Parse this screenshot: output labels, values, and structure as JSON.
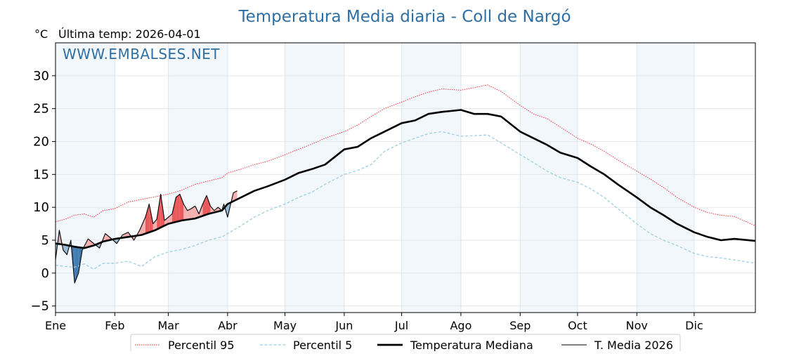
{
  "chart_data": {
    "type": "line",
    "title": "Temperatura Media diaria - Coll de Nargó",
    "unit": "°C",
    "subtitle": "Última temp: 2026-04-01",
    "watermark": "WWW.EMBALSES.NET",
    "ylim": [
      -6,
      35
    ],
    "yticks": [
      -5,
      0,
      5,
      10,
      15,
      20,
      25,
      30
    ],
    "ytick_labels": [
      "−5",
      "0",
      "5",
      "10",
      "15",
      "20",
      "25",
      "30"
    ],
    "xlim": [
      0,
      366
    ],
    "months": [
      {
        "label": "Ene",
        "day": 0
      },
      {
        "label": "Feb",
        "day": 31
      },
      {
        "label": "Mar",
        "day": 59
      },
      {
        "label": "Abr",
        "day": 90
      },
      {
        "label": "May",
        "day": 120
      },
      {
        "label": "Jun",
        "day": 151
      },
      {
        "label": "Jul",
        "day": 181
      },
      {
        "label": "Ago",
        "day": 212
      },
      {
        "label": "Sep",
        "day": 243
      },
      {
        "label": "Oct",
        "day": 273
      },
      {
        "label": "Nov",
        "day": 304
      },
      {
        "label": "Dic",
        "day": 334
      }
    ],
    "grid": true,
    "legend_position": "bottom",
    "series": [
      {
        "name": "Percentil 95",
        "color": "#e8242a",
        "style": "dotted",
        "points": [
          [
            0,
            7.8
          ],
          [
            5,
            8.2
          ],
          [
            10,
            8.8
          ],
          [
            15,
            9.0
          ],
          [
            20,
            8.5
          ],
          [
            25,
            9.5
          ],
          [
            31,
            9.8
          ],
          [
            38,
            10.8
          ],
          [
            45,
            11.2
          ],
          [
            52,
            11.6
          ],
          [
            59,
            12.0
          ],
          [
            66,
            12.6
          ],
          [
            73,
            13.5
          ],
          [
            80,
            14.0
          ],
          [
            87,
            14.5
          ],
          [
            90,
            15.2
          ],
          [
            97,
            15.8
          ],
          [
            104,
            16.5
          ],
          [
            111,
            17.0
          ],
          [
            120,
            18.0
          ],
          [
            127,
            18.8
          ],
          [
            134,
            19.6
          ],
          [
            141,
            20.5
          ],
          [
            151,
            21.5
          ],
          [
            158,
            22.5
          ],
          [
            165,
            23.8
          ],
          [
            172,
            25.0
          ],
          [
            181,
            26.0
          ],
          [
            188,
            26.8
          ],
          [
            195,
            27.5
          ],
          [
            202,
            28.0
          ],
          [
            212,
            27.8
          ],
          [
            219,
            28.2
          ],
          [
            226,
            28.6
          ],
          [
            233,
            27.6
          ],
          [
            243,
            25.5
          ],
          [
            250,
            24.2
          ],
          [
            257,
            23.5
          ],
          [
            264,
            22.2
          ],
          [
            273,
            20.5
          ],
          [
            280,
            19.6
          ],
          [
            287,
            18.5
          ],
          [
            294,
            17.2
          ],
          [
            304,
            15.5
          ],
          [
            311,
            14.3
          ],
          [
            318,
            13.0
          ],
          [
            325,
            11.5
          ],
          [
            334,
            10.0
          ],
          [
            341,
            9.2
          ],
          [
            348,
            8.8
          ],
          [
            355,
            8.6
          ],
          [
            366,
            7.2
          ]
        ]
      },
      {
        "name": "Percentil 5",
        "color": "#9fcfe0",
        "style": "dashed",
        "points": [
          [
            0,
            1.2
          ],
          [
            5,
            1.0
          ],
          [
            10,
            0.9
          ],
          [
            15,
            1.4
          ],
          [
            20,
            0.6
          ],
          [
            25,
            1.5
          ],
          [
            31,
            1.5
          ],
          [
            38,
            1.8
          ],
          [
            45,
            1.0
          ],
          [
            52,
            2.5
          ],
          [
            59,
            3.2
          ],
          [
            66,
            3.6
          ],
          [
            73,
            4.2
          ],
          [
            80,
            5.0
          ],
          [
            87,
            5.5
          ],
          [
            90,
            6.0
          ],
          [
            97,
            7.2
          ],
          [
            104,
            8.5
          ],
          [
            111,
            9.5
          ],
          [
            120,
            10.5
          ],
          [
            127,
            11.5
          ],
          [
            134,
            12.3
          ],
          [
            141,
            13.5
          ],
          [
            151,
            15.0
          ],
          [
            158,
            15.6
          ],
          [
            165,
            16.5
          ],
          [
            172,
            18.5
          ],
          [
            181,
            19.8
          ],
          [
            188,
            20.5
          ],
          [
            195,
            21.2
          ],
          [
            202,
            21.5
          ],
          [
            212,
            20.8
          ],
          [
            219,
            20.9
          ],
          [
            226,
            21.0
          ],
          [
            233,
            19.8
          ],
          [
            243,
            18.0
          ],
          [
            250,
            16.8
          ],
          [
            257,
            15.5
          ],
          [
            264,
            14.5
          ],
          [
            273,
            13.8
          ],
          [
            280,
            12.8
          ],
          [
            287,
            11.5
          ],
          [
            294,
            9.8
          ],
          [
            304,
            7.5
          ],
          [
            311,
            6.0
          ],
          [
            318,
            5.0
          ],
          [
            325,
            4.2
          ],
          [
            334,
            3.0
          ],
          [
            341,
            2.5
          ],
          [
            348,
            2.3
          ],
          [
            355,
            2.0
          ],
          [
            366,
            1.5
          ]
        ]
      },
      {
        "name": "Temperatura Mediana",
        "color": "#000000",
        "style": "solid-thick",
        "points": [
          [
            0,
            4.5
          ],
          [
            5,
            4.3
          ],
          [
            10,
            4.0
          ],
          [
            15,
            3.8
          ],
          [
            20,
            4.2
          ],
          [
            25,
            4.8
          ],
          [
            31,
            5.2
          ],
          [
            38,
            5.5
          ],
          [
            45,
            5.8
          ],
          [
            52,
            6.5
          ],
          [
            59,
            7.5
          ],
          [
            66,
            8.0
          ],
          [
            73,
            8.3
          ],
          [
            80,
            9.0
          ],
          [
            87,
            9.5
          ],
          [
            90,
            10.5
          ],
          [
            97,
            11.5
          ],
          [
            104,
            12.5
          ],
          [
            111,
            13.2
          ],
          [
            120,
            14.2
          ],
          [
            127,
            15.2
          ],
          [
            134,
            15.8
          ],
          [
            141,
            16.5
          ],
          [
            151,
            18.8
          ],
          [
            158,
            19.2
          ],
          [
            165,
            20.5
          ],
          [
            172,
            21.5
          ],
          [
            181,
            22.8
          ],
          [
            188,
            23.2
          ],
          [
            195,
            24.2
          ],
          [
            202,
            24.5
          ],
          [
            212,
            24.8
          ],
          [
            219,
            24.2
          ],
          [
            226,
            24.2
          ],
          [
            233,
            23.8
          ],
          [
            243,
            21.5
          ],
          [
            250,
            20.5
          ],
          [
            257,
            19.5
          ],
          [
            264,
            18.3
          ],
          [
            273,
            17.5
          ],
          [
            280,
            16.2
          ],
          [
            287,
            15.0
          ],
          [
            294,
            13.5
          ],
          [
            304,
            11.5
          ],
          [
            311,
            10.0
          ],
          [
            318,
            8.8
          ],
          [
            325,
            7.5
          ],
          [
            334,
            6.2
          ],
          [
            341,
            5.5
          ],
          [
            348,
            5.0
          ],
          [
            355,
            5.2
          ],
          [
            366,
            4.9
          ]
        ]
      },
      {
        "name": "T. Media 2026",
        "color": "#000000",
        "style": "solid-thin",
        "points": [
          [
            0,
            2.0
          ],
          [
            2,
            6.5
          ],
          [
            4,
            3.5
          ],
          [
            6,
            2.8
          ],
          [
            8,
            5.0
          ],
          [
            10,
            -1.5
          ],
          [
            12,
            0.0
          ],
          [
            14,
            3.5
          ],
          [
            17,
            5.2
          ],
          [
            20,
            4.5
          ],
          [
            23,
            3.8
          ],
          [
            26,
            6.0
          ],
          [
            29,
            5.3
          ],
          [
            32,
            4.5
          ],
          [
            35,
            5.8
          ],
          [
            38,
            6.2
          ],
          [
            41,
            5.0
          ],
          [
            44,
            6.5
          ],
          [
            47,
            8.5
          ],
          [
            49,
            10.5
          ],
          [
            51,
            7.5
          ],
          [
            53,
            8.2
          ],
          [
            55,
            12.0
          ],
          [
            57,
            8.0
          ],
          [
            59,
            8.5
          ],
          [
            61,
            9.0
          ],
          [
            63,
            11.5
          ],
          [
            65,
            12.0
          ],
          [
            67,
            10.5
          ],
          [
            69,
            9.5
          ],
          [
            71,
            9.8
          ],
          [
            73,
            10.2
          ],
          [
            75,
            9.0
          ],
          [
            77,
            10.5
          ],
          [
            79,
            11.8
          ],
          [
            81,
            10.2
          ],
          [
            83,
            9.5
          ],
          [
            85,
            10.0
          ],
          [
            87,
            9.5
          ],
          [
            88,
            10.5
          ],
          [
            90,
            8.5
          ],
          [
            92,
            11.0
          ],
          [
            93,
            12.2
          ],
          [
            95,
            12.5
          ]
        ]
      }
    ]
  },
  "legend": {
    "items": [
      {
        "label": "Percentil 95"
      },
      {
        "label": "Percentil 5"
      },
      {
        "label": "Temperatura Mediana"
      },
      {
        "label": "T. Media 2026"
      }
    ]
  }
}
